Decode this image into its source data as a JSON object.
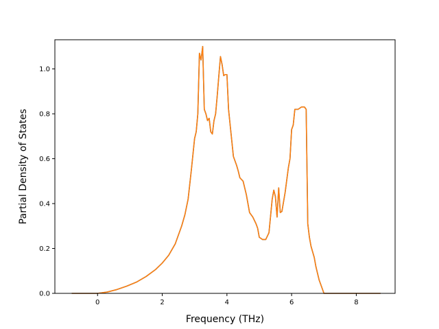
{
  "chart_data": {
    "type": "line",
    "xlabel": "Frequency (THz)",
    "ylabel": "Partial Density of States",
    "xlim": [
      -1.32,
      9.2
    ],
    "ylim": [
      0,
      1.13
    ],
    "xticks": [
      0,
      2,
      4,
      6,
      8
    ],
    "yticks": [
      0.0,
      0.2,
      0.4,
      0.6,
      0.8,
      1.0
    ],
    "xtick_labels": [
      "0",
      "2",
      "4",
      "6",
      "8"
    ],
    "ytick_labels": [
      "0.0",
      "0.2",
      "0.4",
      "0.6",
      "0.8",
      "1.0"
    ],
    "grid": false,
    "series": [
      {
        "color": "#1f77b4",
        "x": [
          -0.8,
          0.0,
          0.3,
          0.6,
          0.9,
          1.2,
          1.5,
          1.8,
          2.0,
          2.2,
          2.4,
          2.6,
          2.7,
          2.8,
          2.9,
          3.0,
          3.05,
          3.1,
          3.15,
          3.2,
          3.25,
          3.3,
          3.35,
          3.4,
          3.45,
          3.5,
          3.55,
          3.6,
          3.65,
          3.7,
          3.75,
          3.8,
          3.85,
          3.9,
          3.95,
          4.0,
          4.05,
          4.1,
          4.15,
          4.2,
          4.3,
          4.35,
          4.4,
          4.5,
          4.6,
          4.7,
          4.8,
          4.9,
          4.95,
          5.0,
          5.1,
          5.2,
          5.3,
          5.4,
          5.45,
          5.5,
          5.55,
          5.6,
          5.65,
          5.7,
          5.8,
          5.9,
          5.95,
          6.0,
          6.05,
          6.1,
          6.2,
          6.3,
          6.4,
          6.45,
          6.5,
          6.55,
          6.6,
          6.7,
          6.75,
          6.8,
          6.85,
          6.9,
          7.0,
          7.2,
          7.4,
          7.6,
          7.8,
          7.9,
          8.0,
          8.1,
          8.75
        ],
        "y": [
          0.0,
          0.0,
          0.006,
          0.017,
          0.032,
          0.05,
          0.075,
          0.107,
          0.135,
          0.17,
          0.22,
          0.3,
          0.35,
          0.42,
          0.55,
          0.69,
          0.72,
          0.8,
          1.07,
          1.04,
          1.1,
          0.82,
          0.8,
          0.77,
          0.78,
          0.72,
          0.71,
          0.77,
          0.8,
          0.88,
          0.97,
          1.055,
          1.02,
          0.97,
          0.975,
          0.975,
          0.82,
          0.75,
          0.68,
          0.61,
          0.57,
          0.545,
          0.515,
          0.5,
          0.44,
          0.36,
          0.34,
          0.31,
          0.29,
          0.25,
          0.24,
          0.24,
          0.27,
          0.42,
          0.46,
          0.43,
          0.34,
          0.47,
          0.36,
          0.365,
          0.45,
          0.56,
          0.6,
          0.73,
          0.75,
          0.82,
          0.82,
          0.83,
          0.83,
          0.82,
          0.31,
          0.25,
          0.21,
          0.16,
          0.12,
          0.09,
          0.06,
          0.04,
          0.0,
          0.0,
          0.0,
          0.0,
          0.0,
          0.0,
          0.0,
          0.0,
          0.0
        ]
      },
      {
        "color": "#ff7f0e",
        "x": [
          -0.8,
          0.0,
          0.3,
          0.6,
          0.9,
          1.2,
          1.5,
          1.8,
          2.0,
          2.2,
          2.4,
          2.6,
          2.7,
          2.8,
          2.9,
          3.0,
          3.05,
          3.1,
          3.15,
          3.2,
          3.25,
          3.3,
          3.35,
          3.4,
          3.45,
          3.5,
          3.55,
          3.6,
          3.65,
          3.7,
          3.75,
          3.8,
          3.85,
          3.9,
          3.95,
          4.0,
          4.05,
          4.1,
          4.15,
          4.2,
          4.3,
          4.35,
          4.4,
          4.5,
          4.6,
          4.7,
          4.8,
          4.9,
          4.95,
          5.0,
          5.1,
          5.2,
          5.3,
          5.4,
          5.45,
          5.5,
          5.55,
          5.6,
          5.65,
          5.7,
          5.8,
          5.9,
          5.95,
          6.0,
          6.05,
          6.1,
          6.2,
          6.3,
          6.4,
          6.45,
          6.5,
          6.55,
          6.6,
          6.7,
          6.75,
          6.8,
          6.85,
          6.9,
          7.0,
          7.2,
          7.4,
          7.6,
          7.8,
          7.9,
          8.0,
          8.1,
          8.75
        ],
        "y": [
          0.0,
          0.0,
          0.006,
          0.017,
          0.032,
          0.05,
          0.075,
          0.107,
          0.135,
          0.17,
          0.22,
          0.3,
          0.35,
          0.42,
          0.55,
          0.69,
          0.72,
          0.8,
          1.07,
          1.04,
          1.1,
          0.82,
          0.8,
          0.77,
          0.78,
          0.72,
          0.71,
          0.77,
          0.8,
          0.88,
          0.97,
          1.055,
          1.02,
          0.97,
          0.975,
          0.975,
          0.82,
          0.75,
          0.68,
          0.61,
          0.57,
          0.545,
          0.515,
          0.5,
          0.44,
          0.36,
          0.34,
          0.31,
          0.29,
          0.25,
          0.24,
          0.24,
          0.27,
          0.42,
          0.46,
          0.43,
          0.34,
          0.47,
          0.36,
          0.365,
          0.45,
          0.56,
          0.6,
          0.73,
          0.75,
          0.82,
          0.82,
          0.83,
          0.83,
          0.82,
          0.31,
          0.25,
          0.21,
          0.16,
          0.12,
          0.09,
          0.06,
          0.04,
          0.0,
          0.0,
          0.0,
          0.0,
          0.0,
          0.0,
          0.0,
          0.0,
          0.0
        ]
      }
    ]
  }
}
